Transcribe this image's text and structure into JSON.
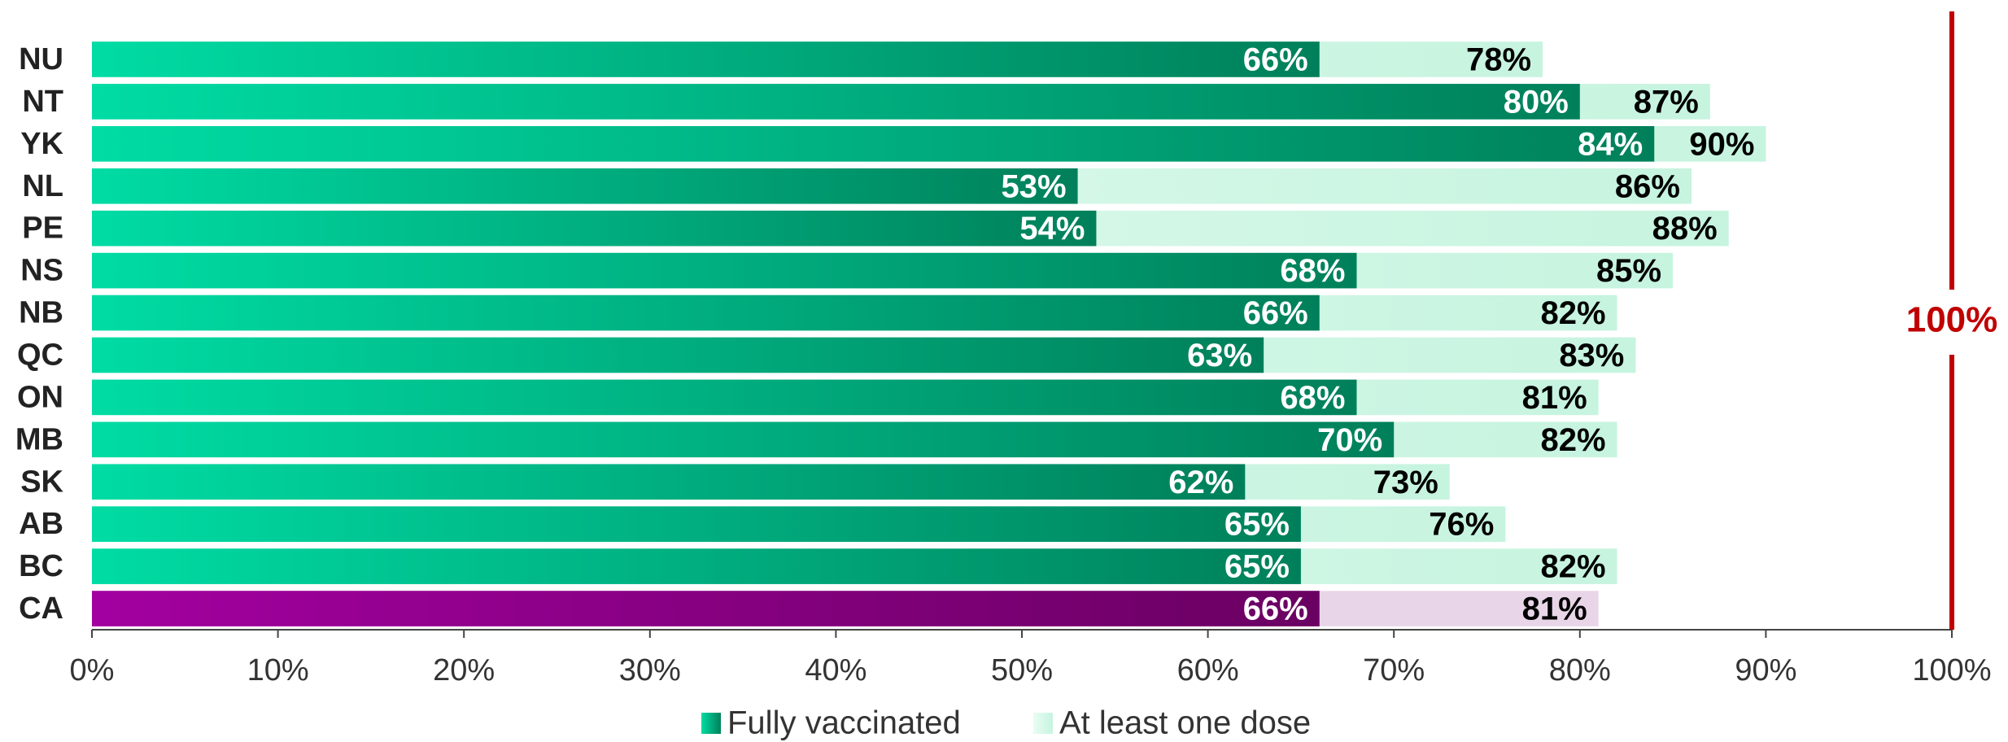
{
  "chart_data": {
    "type": "bar",
    "orientation": "horizontal",
    "categories": [
      "NU",
      "NT",
      "YK",
      "NL",
      "PE",
      "NS",
      "NB",
      "QC",
      "ON",
      "MB",
      "SK",
      "AB",
      "BC",
      "CA"
    ],
    "series": [
      {
        "name": "At least one dose",
        "color": "#c6f4df",
        "gradient_from": "#eafcf4",
        "highlight_color": "#e8d6e8",
        "values": [
          78,
          87,
          90,
          86,
          88,
          85,
          82,
          83,
          81,
          82,
          73,
          76,
          82,
          81
        ],
        "value_labels": [
          "78%",
          "87%",
          "90%",
          "86%",
          "88%",
          "85%",
          "82%",
          "83%",
          "81%",
          "82%",
          "73%",
          "76%",
          "82%",
          "81%"
        ]
      },
      {
        "name": "Fully vaccinated",
        "color": "#00805a",
        "gradient_from": "#00dca4",
        "highlight_color": "#6a0062",
        "highlight_gradient_from": "#a300a0",
        "values": [
          66,
          80,
          84,
          53,
          54,
          68,
          66,
          63,
          68,
          70,
          62,
          65,
          65,
          66
        ],
        "value_labels": [
          "66%",
          "80%",
          "84%",
          "53%",
          "54%",
          "68%",
          "66%",
          "63%",
          "68%",
          "70%",
          "62%",
          "65%",
          "65%",
          "66%"
        ]
      }
    ],
    "highlight_index": 13,
    "legend_order": [
      1,
      0
    ],
    "xlim": [
      0,
      100
    ],
    "xticks": [
      {
        "value": 0,
        "label": "0%"
      },
      {
        "value": 10,
        "label": "10%"
      },
      {
        "value": 20,
        "label": "20%"
      },
      {
        "value": 30,
        "label": "30%"
      },
      {
        "value": 40,
        "label": "40%"
      },
      {
        "value": 50,
        "label": "50%"
      },
      {
        "value": 60,
        "label": "60%"
      },
      {
        "value": 70,
        "label": "70%"
      },
      {
        "value": 80,
        "label": "80%"
      },
      {
        "value": 90,
        "label": "90%"
      },
      {
        "value": 100,
        "label": "100%"
      }
    ],
    "reference_line": {
      "value": 100,
      "label": "100%",
      "color": "#c00000"
    },
    "legend": "bottom"
  }
}
